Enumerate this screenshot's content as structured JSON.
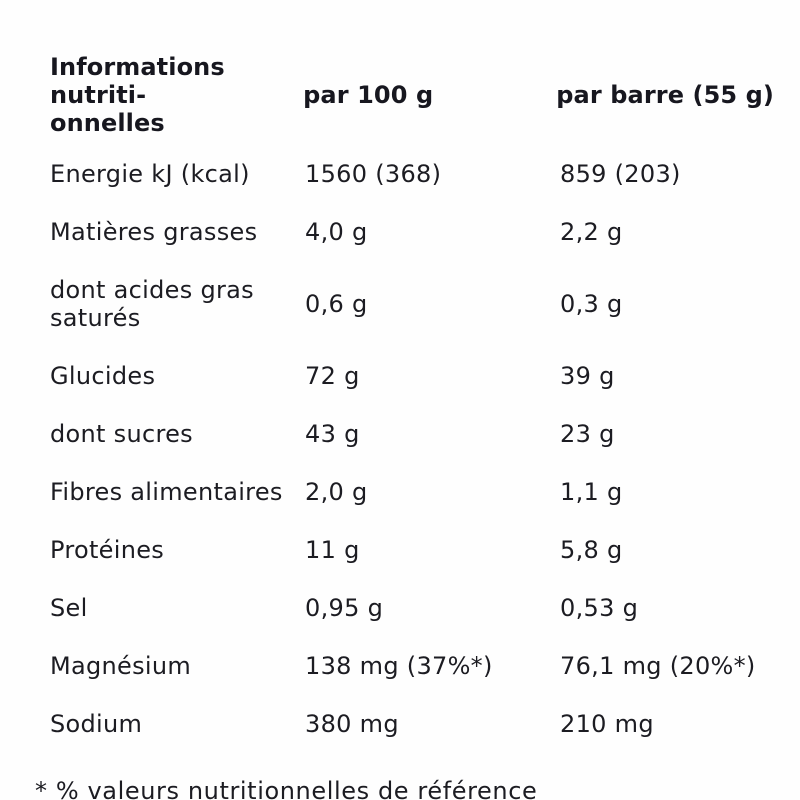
{
  "page": {
    "background_color": "#fefefe",
    "text_color": "#1c1c22"
  },
  "table": {
    "header": {
      "label_line1": "Informations nutriti-",
      "label_line2": "onnelles",
      "per_100g": "par 100 g",
      "per_bar": "par barre (55 g)"
    },
    "rows": [
      {
        "label": "Energie kJ (kcal)",
        "per_100g": "1560 (368)",
        "per_bar": "859 (203)"
      },
      {
        "label": "Matières grasses",
        "per_100g": "4,0 g",
        "per_bar": "2,2 g"
      },
      {
        "label": "dont acides gras saturés",
        "per_100g": "0,6 g",
        "per_bar": "0,3 g"
      },
      {
        "label": "Glucides",
        "per_100g": "72 g",
        "per_bar": "39 g"
      },
      {
        "label": "dont sucres",
        "per_100g": "43 g",
        "per_bar": "23 g"
      },
      {
        "label": "Fibres alimentaires",
        "per_100g": "2,0 g",
        "per_bar": "1,1 g"
      },
      {
        "label": "Protéines",
        "per_100g": "11 g",
        "per_bar": "5,8 g"
      },
      {
        "label": "Sel",
        "per_100g": "0,95 g",
        "per_bar": "0,53 g"
      },
      {
        "label": "Magnésium",
        "per_100g": "138 mg (37%*)",
        "per_bar": "76,1 mg (20%*)"
      },
      {
        "label": "Sodium",
        "per_100g": "380 mg",
        "per_bar": "210 mg"
      }
    ],
    "footnote": "* % valeurs nutritionnelles de référence"
  }
}
